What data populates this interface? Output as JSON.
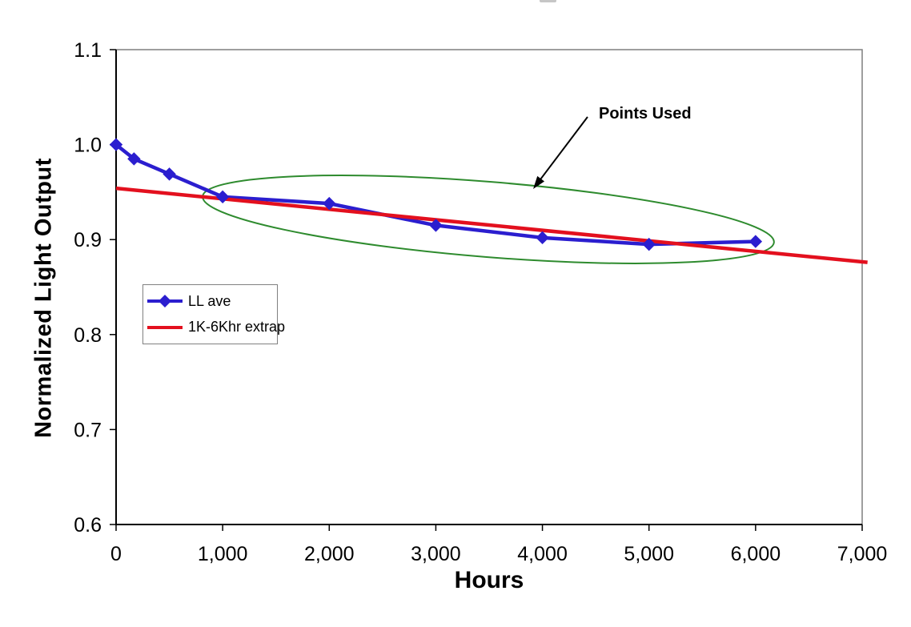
{
  "chart_data": {
    "type": "line",
    "title": "",
    "xlabel": "Hours",
    "ylabel": "Normalized Light Output",
    "xlim": [
      0,
      7000
    ],
    "ylim": [
      0.6,
      1.1
    ],
    "grid": false,
    "x_ticks": {
      "values": [
        0,
        1000,
        2000,
        3000,
        4000,
        5000,
        6000,
        7000
      ],
      "labels": [
        "0",
        "1,000",
        "2,000",
        "3,000",
        "4,000",
        "5,000",
        "6,000",
        "7,000"
      ]
    },
    "y_ticks": {
      "values": [
        1.1,
        1.0,
        0.9,
        0.8,
        0.7,
        0.6
      ],
      "labels": [
        "1.1",
        "1.0",
        "0.9",
        "0.8",
        "0.7",
        "0.6"
      ]
    },
    "series": [
      {
        "name": "LL ave",
        "type": "line+markers",
        "marker": "diamond",
        "color": "#2b1ecf",
        "x": [
          0,
          168,
          500,
          1000,
          2000,
          3000,
          4000,
          5000,
          6000
        ],
        "y": [
          1.0,
          0.985,
          0.969,
          0.945,
          0.938,
          0.915,
          0.902,
          0.895,
          0.898
        ]
      },
      {
        "name": "1K-6Khr extrap",
        "type": "line",
        "marker": "none",
        "color": "#e3101e",
        "x": [
          0,
          7050
        ],
        "y": [
          0.954,
          0.876
        ]
      }
    ],
    "annotation": {
      "label": "Points Used",
      "highlight": "green ellipse circling the data points from 1,000 to 6,000 hours",
      "ellipse_color": "#2e8b2e",
      "arrow_color": "#000000"
    },
    "legend_position": "inside upper-left",
    "axis_color": "#000000",
    "border_color": "#7f7f7f"
  }
}
